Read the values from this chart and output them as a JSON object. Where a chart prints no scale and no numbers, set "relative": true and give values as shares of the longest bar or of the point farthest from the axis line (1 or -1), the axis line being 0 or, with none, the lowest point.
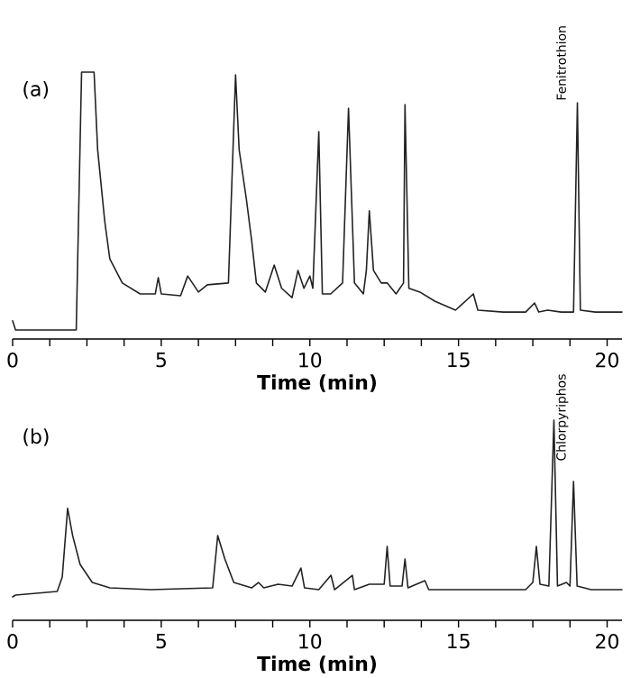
{
  "chart_data": [
    {
      "type": "line",
      "title": "(a)",
      "xlabel": "Time (min)",
      "relative": true,
      "xlim": [
        0,
        20.5
      ],
      "xticks": [
        0,
        {
          "value": 1.25,
          "label": null
        },
        {
          "value": 2.5,
          "label": null
        },
        {
          "value": 3.75,
          "label": null
        },
        5,
        {
          "value": 6.25,
          "label": null
        },
        {
          "value": 7.5,
          "label": null
        },
        {
          "value": 8.75,
          "label": null
        },
        10,
        {
          "value": 11.25,
          "label": null
        },
        {
          "value": 12.5,
          "label": null
        },
        {
          "value": 13.75,
          "label": null
        },
        15,
        {
          "value": 16.25,
          "label": null
        },
        {
          "value": 17.5,
          "label": null
        },
        {
          "value": 18.75,
          "label": null
        },
        20
      ],
      "x": [
        0,
        0.1,
        2.14,
        2.32,
        2.74,
        2.86,
        3.1,
        3.27,
        3.69,
        4.29,
        4.8,
        4.9,
        5.0,
        5.65,
        5.89,
        6.25,
        6.55,
        7.26,
        7.5,
        7.62,
        7.86,
        8.04,
        8.2,
        8.5,
        8.8,
        9.05,
        9.4,
        9.6,
        9.8,
        10.0,
        10.1,
        10.3,
        10.42,
        10.7,
        11.1,
        11.3,
        11.5,
        11.8,
        11.9,
        12.0,
        12.14,
        12.4,
        12.6,
        12.9,
        13.15,
        13.2,
        13.33,
        13.7,
        14.2,
        14.9,
        15.5,
        15.65,
        16.5,
        17.26,
        17.56,
        17.7,
        18.0,
        18.45,
        18.87,
        19.0,
        19.1,
        19.6,
        20.5
      ],
      "series": [
        {
          "color": "#222222",
          "values": [
            0.068,
            0.034,
            0.034,
            1.0,
            1.0,
            0.71,
            0.44,
            0.3,
            0.21,
            0.169,
            0.169,
            0.23,
            0.169,
            0.162,
            0.236,
            0.176,
            0.203,
            0.21,
            0.99,
            0.71,
            0.527,
            0.37,
            0.21,
            0.176,
            0.277,
            0.19,
            0.155,
            0.257,
            0.19,
            0.236,
            0.19,
            0.777,
            0.169,
            0.169,
            0.21,
            0.865,
            0.21,
            0.169,
            0.257,
            0.48,
            0.257,
            0.21,
            0.21,
            0.169,
            0.21,
            0.878,
            0.19,
            0.176,
            0.142,
            0.108,
            0.169,
            0.108,
            0.101,
            0.101,
            0.135,
            0.101,
            0.108,
            0.101,
            0.101,
            0.885,
            0.108,
            0.101,
            0.101
          ]
        }
      ],
      "annotations": [
        {
          "text": "Fenitrothion",
          "x": 19.0,
          "y": 0.885
        }
      ]
    },
    {
      "type": "line",
      "title": "(b)",
      "xlabel": "Time (min)",
      "relative": true,
      "xlim": [
        0,
        20.5
      ],
      "xticks": [
        0,
        {
          "value": 1.25,
          "label": null
        },
        {
          "value": 2.5,
          "label": null
        },
        {
          "value": 3.75,
          "label": null
        },
        5,
        {
          "value": 6.25,
          "label": null
        },
        {
          "value": 7.5,
          "label": null
        },
        {
          "value": 8.75,
          "label": null
        },
        10,
        {
          "value": 11.25,
          "label": null
        },
        {
          "value": 12.5,
          "label": null
        },
        {
          "value": 13.75,
          "label": null
        },
        15,
        {
          "value": 16.25,
          "label": null
        },
        {
          "value": 17.5,
          "label": null
        },
        {
          "value": 18.75,
          "label": null
        },
        20
      ],
      "x": [
        0,
        0.1,
        1.5,
        1.67,
        1.85,
        2.02,
        2.27,
        2.68,
        3.27,
        4.65,
        6.73,
        6.9,
        7.14,
        7.44,
        8.04,
        8.27,
        8.45,
        8.93,
        9.4,
        9.7,
        9.82,
        10.3,
        10.71,
        10.83,
        11.43,
        11.5,
        12.0,
        12.5,
        12.6,
        12.7,
        13.1,
        13.2,
        13.3,
        13.87,
        14.0,
        15.06,
        16.07,
        17.26,
        17.5,
        17.62,
        17.74,
        18.04,
        18.21,
        18.33,
        18.63,
        18.75,
        18.87,
        18.99,
        19.46,
        20.5
      ],
      "series": [
        {
          "color": "#222222",
          "values": [
            0.117,
            0.126,
            0.144,
            0.216,
            0.559,
            0.423,
            0.279,
            0.189,
            0.162,
            0.153,
            0.162,
            0.423,
            0.306,
            0.189,
            0.162,
            0.189,
            0.162,
            0.18,
            0.171,
            0.261,
            0.162,
            0.153,
            0.225,
            0.153,
            0.225,
            0.153,
            0.18,
            0.18,
            0.369,
            0.171,
            0.171,
            0.306,
            0.162,
            0.198,
            0.153,
            0.153,
            0.153,
            0.153,
            0.189,
            0.369,
            0.18,
            0.171,
            1.0,
            0.171,
            0.189,
            0.171,
            0.694,
            0.171,
            0.153,
            0.153
          ]
        }
      ],
      "annotations": [
        {
          "text": "Chlorpyriphos",
          "x": 18.21,
          "y": 1.0
        }
      ]
    }
  ]
}
